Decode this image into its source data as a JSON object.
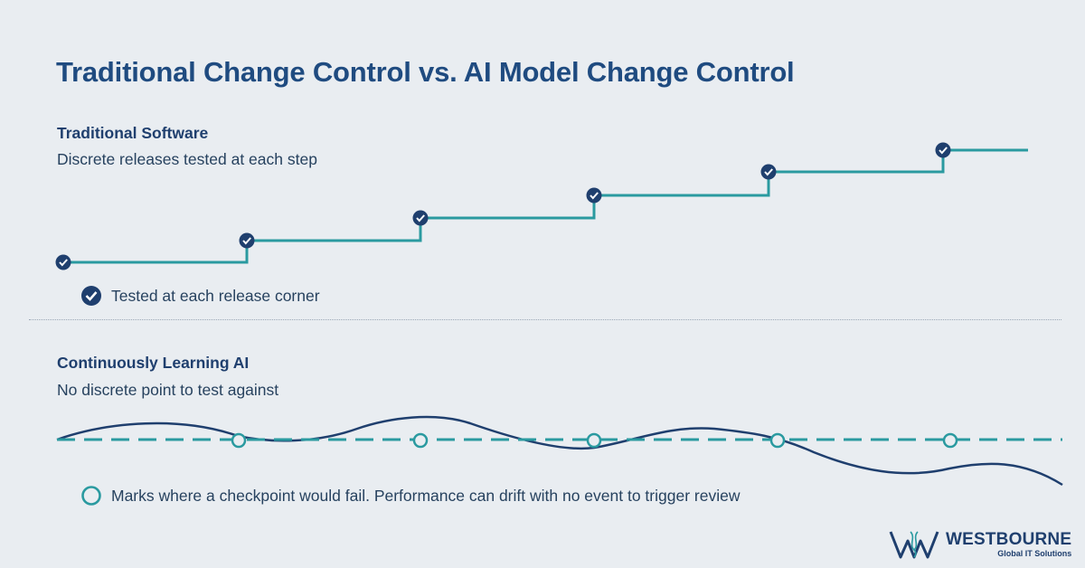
{
  "title": "Traditional Change Control vs. AI Model Change Control",
  "traditional": {
    "title": "Traditional Software",
    "subtitle": "Discrete releases tested at each step",
    "legend": "Tested at each release corner",
    "release_count": 6
  },
  "ai": {
    "title": "Continuously Learning AI",
    "subtitle": "No discrete point to test against",
    "legend": "Marks where a checkpoint would fail. Performance can drift with no event to trigger review",
    "checkpoint_count": 5
  },
  "logo": {
    "name": "WESTBOURNE",
    "tagline": "Global IT Solutions"
  },
  "colors": {
    "teal": "#2a9aa0",
    "navy": "#1f3f6e",
    "background": "#e9edf1"
  },
  "icons": {
    "tested": "check-circle-icon",
    "checkpoint": "hollow-circle-icon"
  }
}
